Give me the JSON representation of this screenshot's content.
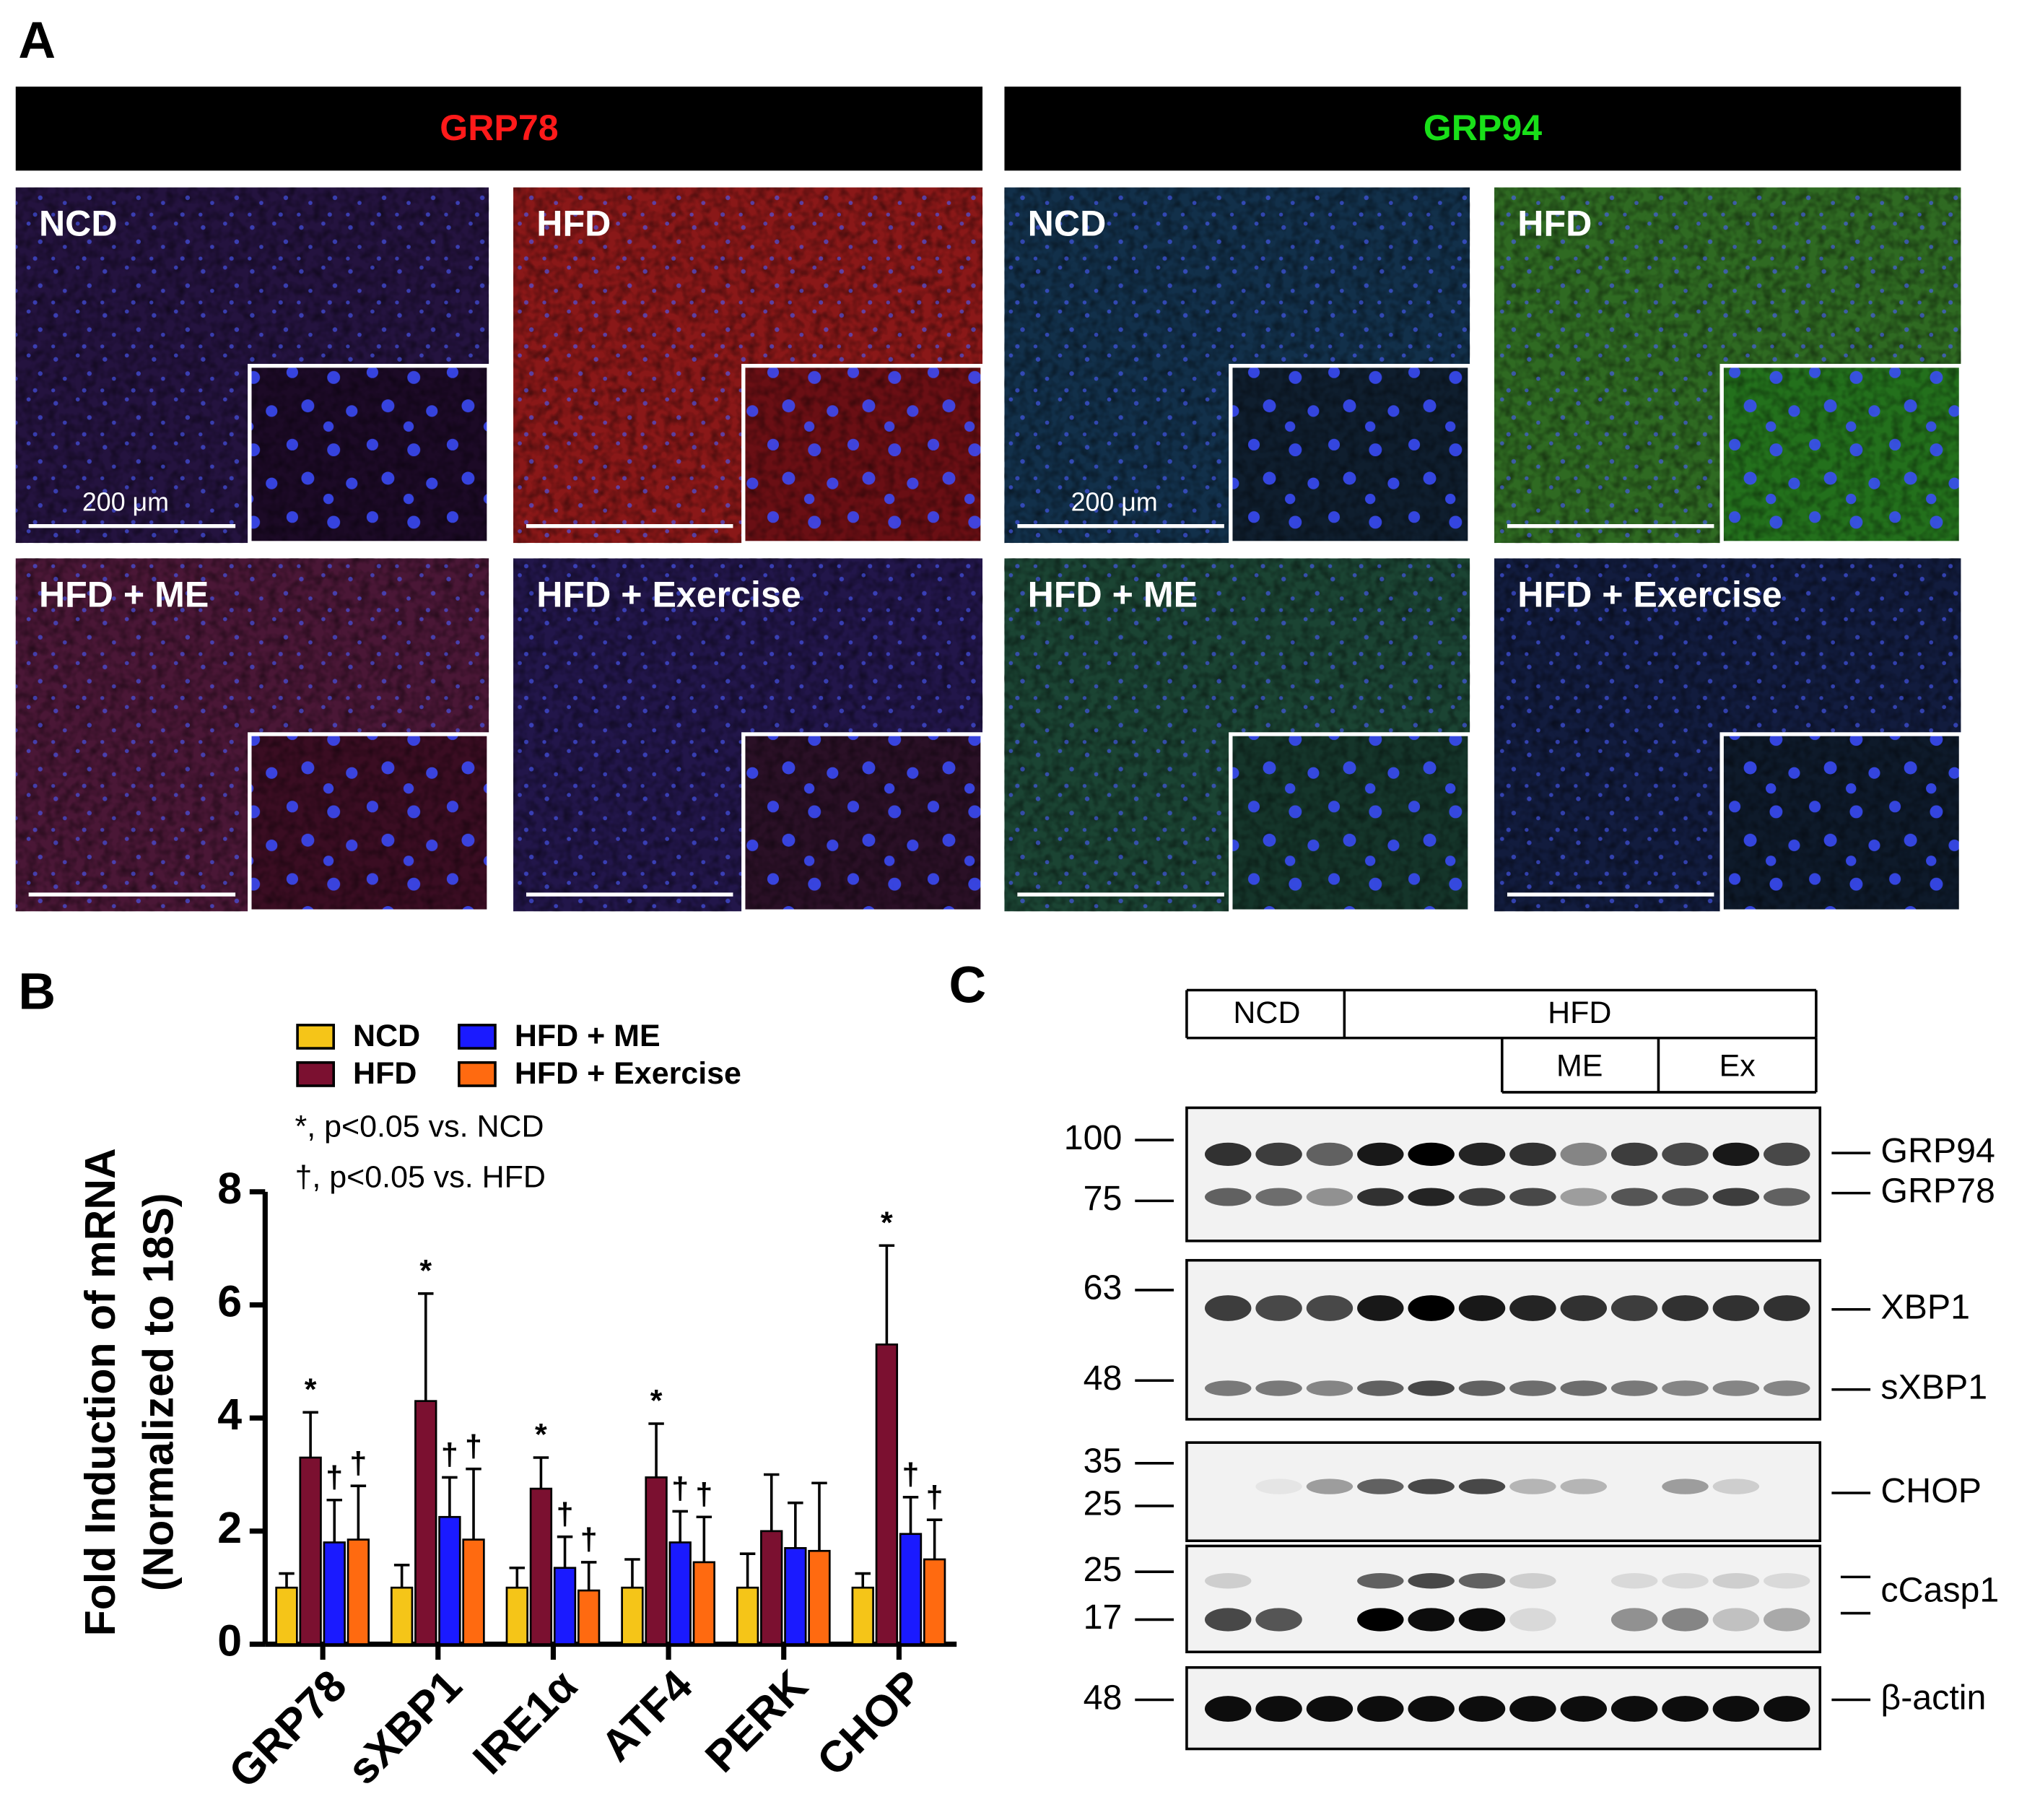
{
  "panel_labels": [
    "A",
    "B",
    "C"
  ],
  "panel_a": {
    "headers": [
      "GRP78",
      "GRP94"
    ],
    "conditions": [
      "NCD",
      "HFD",
      "HFD + ME",
      "HFD + Exercise"
    ],
    "scale_bar": "200 μm"
  },
  "chart_data": {
    "type": "bar",
    "ylabel": [
      "Fold Induction of mRNA",
      "(Normalized to 18S)"
    ],
    "notes": [
      "*, p<0.05 vs. NCD",
      "†, p<0.05 vs. HFD"
    ],
    "categories": [
      "GRP78",
      "sXBP1",
      "IRE1α",
      "ATF4",
      "PERK",
      "CHOP"
    ],
    "series": [
      {
        "name": "NCD",
        "color": "#f5c518",
        "values": [
          1.0,
          1.0,
          1.0,
          1.0,
          1.0,
          1.0
        ],
        "errors": [
          0.25,
          0.4,
          0.35,
          0.5,
          0.6,
          0.25
        ],
        "markers": [
          null,
          null,
          null,
          null,
          null,
          null
        ]
      },
      {
        "name": "HFD",
        "color": "#7b1030",
        "values": [
          3.3,
          4.3,
          2.75,
          2.95,
          2.0,
          5.3
        ],
        "errors": [
          0.8,
          1.9,
          0.55,
          0.95,
          1.0,
          1.75
        ],
        "markers": [
          "*",
          "*",
          "*",
          "*",
          null,
          "*"
        ]
      },
      {
        "name": "HFD + ME",
        "color": "#1a1aff",
        "values": [
          1.8,
          2.25,
          1.35,
          1.8,
          1.7,
          1.95
        ],
        "errors": [
          0.75,
          0.7,
          0.55,
          0.55,
          0.8,
          0.65
        ],
        "markers": [
          "†",
          "†",
          "†",
          "†",
          null,
          "†"
        ]
      },
      {
        "name": "HFD + Exercise",
        "color": "#ff6a10",
        "values": [
          1.85,
          1.85,
          0.95,
          1.45,
          1.65,
          1.5
        ],
        "errors": [
          0.95,
          1.25,
          0.5,
          0.8,
          1.2,
          0.7
        ],
        "markers": [
          "†",
          "†",
          "†",
          "†",
          null,
          "†"
        ]
      }
    ],
    "ylim": [
      0,
      8
    ],
    "yticks": [
      0,
      2,
      4,
      6,
      8
    ],
    "grid": false
  },
  "panel_c": {
    "groups": [
      "NCD",
      "HFD",
      "ME",
      "Ex"
    ],
    "mw_markers": [
      100,
      75,
      63,
      48,
      35,
      25,
      25,
      17,
      48
    ],
    "proteins": [
      "GRP94",
      "GRP78",
      "XBP1",
      "sXBP1",
      "CHOP",
      "cCasp1",
      "β-actin"
    ]
  }
}
